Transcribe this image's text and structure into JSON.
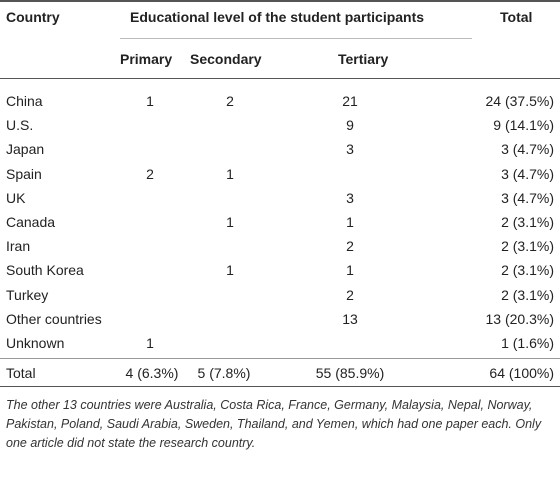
{
  "headers": {
    "country": "Country",
    "educational_level": "Educational level of the student participants",
    "total": "Total",
    "primary": "Primary",
    "secondary": "Secondary",
    "tertiary": "Tertiary"
  },
  "rows": [
    {
      "country": "China",
      "primary": "1",
      "secondary": "2",
      "tertiary": "21",
      "total": "24 (37.5%)"
    },
    {
      "country": "U.S.",
      "primary": "",
      "secondary": "",
      "tertiary": "9",
      "total": "9 (14.1%)"
    },
    {
      "country": "Japan",
      "primary": "",
      "secondary": "",
      "tertiary": "3",
      "total": "3 (4.7%)"
    },
    {
      "country": "Spain",
      "primary": "2",
      "secondary": "1",
      "tertiary": "",
      "total": "3 (4.7%)"
    },
    {
      "country": "UK",
      "primary": "",
      "secondary": "",
      "tertiary": "3",
      "total": "3 (4.7%)"
    },
    {
      "country": "Canada",
      "primary": "",
      "secondary": "1",
      "tertiary": "1",
      "total": "2 (3.1%)"
    },
    {
      "country": "Iran",
      "primary": "",
      "secondary": "",
      "tertiary": "2",
      "total": "2 (3.1%)"
    },
    {
      "country": "South Korea",
      "primary": "",
      "secondary": "1",
      "tertiary": "1",
      "total": "2 (3.1%)"
    },
    {
      "country": "Turkey",
      "primary": "",
      "secondary": "",
      "tertiary": "2",
      "total": "2 (3.1%)"
    },
    {
      "country": "Other countries",
      "primary": "",
      "secondary": "",
      "tertiary": "13",
      "total": "13 (20.3%)"
    },
    {
      "country": "Unknown",
      "primary": "1",
      "secondary": "",
      "tertiary": "",
      "total": "1 (1.6%)"
    }
  ],
  "totals": {
    "country": "Total",
    "primary": "4 (6.3%)",
    "secondary": "5 (7.8%)",
    "tertiary": "55 (85.9%)",
    "total": "64 (100%)"
  },
  "footnote": "The other 13 countries were Australia, Costa Rica, France, Germany, Malaysia, Nepal, Norway, Pakistan, Poland, Saudi Arabia, Sweden, Thailand, and Yemen, which had one paper each. Only one article did not state the research country."
}
